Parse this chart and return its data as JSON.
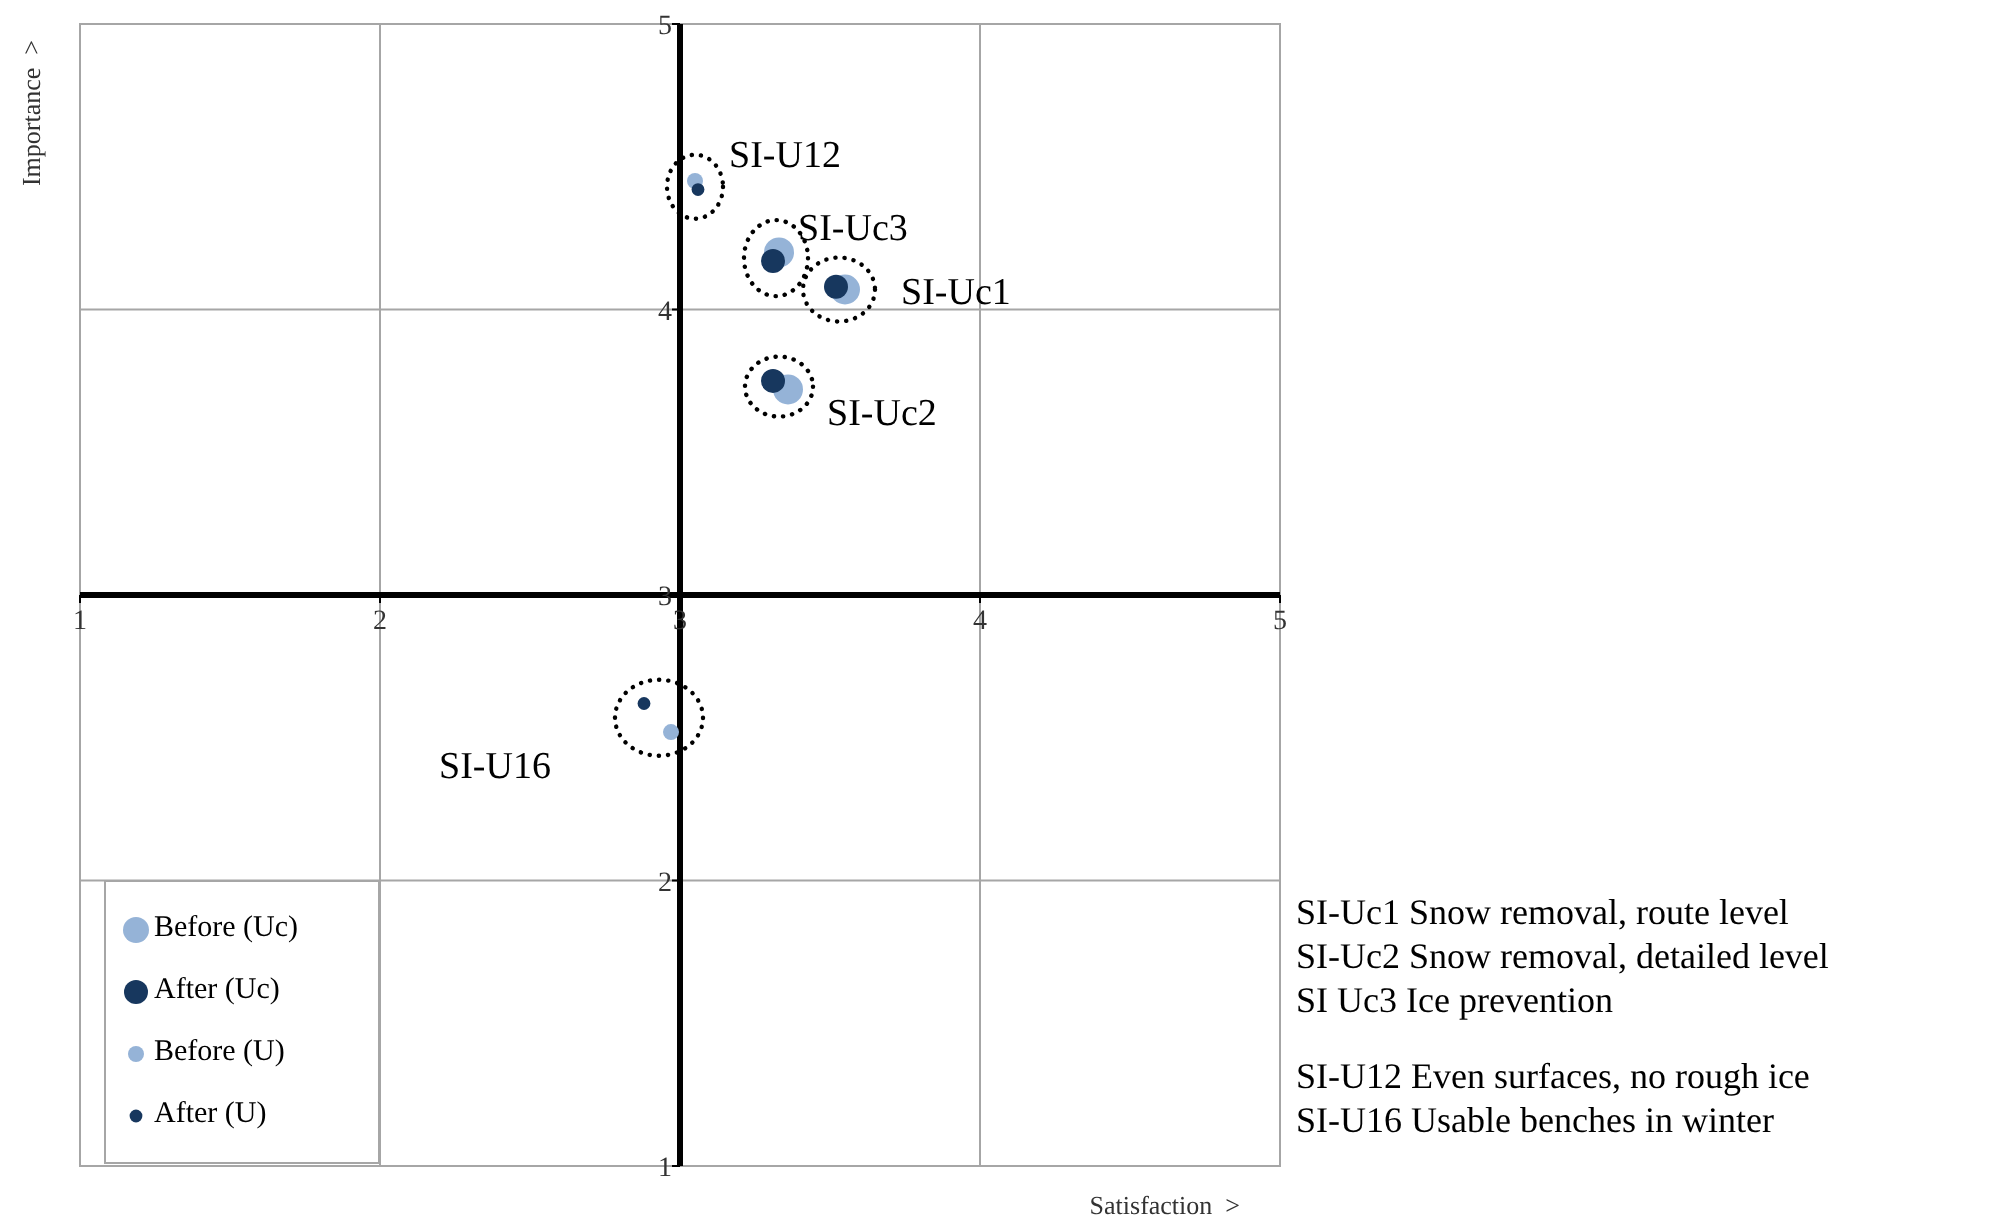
{
  "chart_data": {
    "type": "scatter",
    "xlabel": "Satisfaction  >",
    "ylabel": "Importance  >",
    "xlim": [
      1,
      5
    ],
    "ylim": [
      1,
      5
    ],
    "xticks": [
      1,
      2,
      3,
      4,
      5
    ],
    "yticks": [
      1,
      2,
      3,
      4,
      5
    ],
    "grid": true,
    "legend": "bottom left",
    "marker": "circle",
    "series": [
      {
        "name": "Before (Uc)",
        "color": "#95b3d7",
        "x": [
          3.55,
          3.36,
          3.33
        ],
        "values": [
          4.07,
          3.72,
          4.2
        ]
      },
      {
        "name": "After (Uc)",
        "color": "#17375e",
        "x": [
          3.52,
          3.31,
          3.31
        ],
        "values": [
          4.08,
          3.75,
          4.17
        ]
      },
      {
        "name": "Before (U)",
        "color": "#95b3d7",
        "x": [
          3.05,
          2.97
        ],
        "values": [
          4.45,
          2.52
        ]
      },
      {
        "name": "After (U)",
        "color": "#17375e",
        "x": [
          3.06,
          2.88
        ],
        "values": [
          4.42,
          2.62
        ]
      }
    ],
    "annotations": [
      {
        "text": "SI-U12",
        "x": 3.05,
        "y": 4.43
      },
      {
        "text": "SI-Uc3",
        "x": 3.32,
        "y": 4.18
      },
      {
        "text": "SI-Uc1",
        "x": 3.53,
        "y": 4.07
      },
      {
        "text": "SI-Uc2",
        "x": 3.33,
        "y": 3.73
      },
      {
        "text": "SI-U16",
        "x": 2.93,
        "y": 2.57
      },
      "SI-Uc1 Snow removal, route level",
      "SI-Uc2 Snow removal, detailed level",
      "SI Uc3 Ice prevention",
      "SI-U12 Even surfaces, no rough ice",
      "SI-U16 Usable benches in winter"
    ]
  }
}
